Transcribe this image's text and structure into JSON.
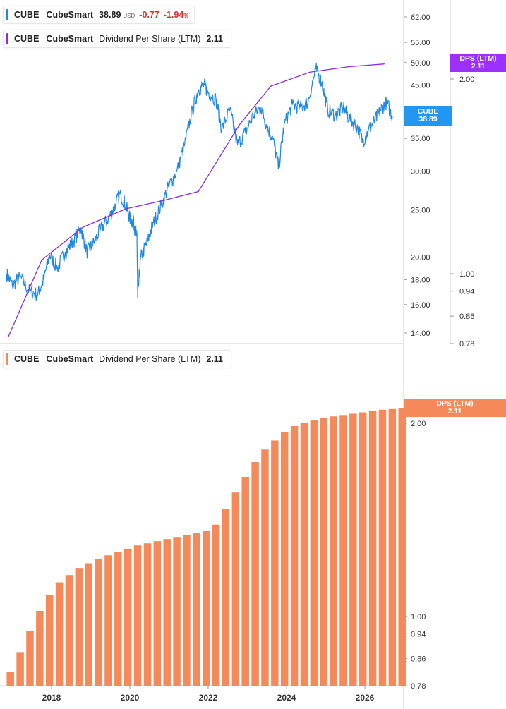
{
  "legends": {
    "price": {
      "symbol": "CUBE",
      "name": "CubeSmart",
      "value": "38.89",
      "currency": "USD",
      "change": "-0.77",
      "change_pct": "-1.94",
      "pct_sign": "%",
      "color": "#1e88e5"
    },
    "dps_top": {
      "symbol": "CUBE",
      "name": "CubeSmart",
      "label": "Dividend Per Share (LTM)",
      "value": "2.11",
      "color": "#8a2be2"
    },
    "dps_bottom": {
      "symbol": "CUBE",
      "name": "CubeSmart",
      "label": "Dividend Per Share (LTM)",
      "value": "2.11",
      "color": "#f5895a"
    }
  },
  "tags": {
    "price": {
      "line1": "CUBE",
      "line2": "38.89",
      "color": "#2196f3"
    },
    "dps_top": {
      "line1": "DPS (LTM)",
      "line2": "2.11",
      "color": "#9b30ff"
    },
    "dps_bottom": {
      "line1": "DPS (LTM)",
      "line2": "2.11",
      "color": "#f5895a"
    }
  },
  "chart_data": [
    {
      "type": "line",
      "scale": "log",
      "x_axis": {
        "ticks": [
          "2018",
          "2020",
          "2022",
          "2024",
          "2026"
        ]
      },
      "y_price_ticks": [
        14,
        16,
        18,
        20,
        25,
        30,
        35,
        40,
        45,
        50,
        55,
        62
      ],
      "y_price_labels": [
        "14.00",
        "16.00",
        "18.00",
        "20.00",
        "25.00",
        "30.00",
        "35.00",
        "45.00",
        "50.00",
        "55.00",
        "62.00"
      ],
      "y_dps_ticks": [
        0.78,
        0.86,
        0.94,
        1.0,
        2.0
      ],
      "y_dps_labels": [
        "0.78",
        "0.86",
        "0.94",
        "1.00",
        "2.00"
      ],
      "series": [
        {
          "name": "CUBE",
          "color": "#1e88e5",
          "points": [
            [
              2016.85,
              18.5
            ],
            [
              2017.0,
              17.5
            ],
            [
              2017.2,
              18.2
            ],
            [
              2017.45,
              17.0
            ],
            [
              2017.65,
              16.8
            ],
            [
              2017.8,
              18.0
            ],
            [
              2017.95,
              20.2
            ],
            [
              2018.15,
              19.0
            ],
            [
              2018.35,
              20.5
            ],
            [
              2018.55,
              21.5
            ],
            [
              2018.75,
              23.0
            ],
            [
              2018.9,
              20.5
            ],
            [
              2019.05,
              21.2
            ],
            [
              2019.25,
              22.8
            ],
            [
              2019.45,
              24.0
            ],
            [
              2019.6,
              25.2
            ],
            [
              2019.75,
              27.0
            ],
            [
              2019.9,
              25.5
            ],
            [
              2020.0,
              24.0
            ],
            [
              2020.1,
              23.5
            ],
            [
              2020.18,
              22.0
            ],
            [
              2020.2,
              16.5
            ],
            [
              2020.28,
              20.0
            ],
            [
              2020.45,
              21.5
            ],
            [
              2020.6,
              23.5
            ],
            [
              2020.8,
              25.5
            ],
            [
              2021.0,
              28.0
            ],
            [
              2021.2,
              30.0
            ],
            [
              2021.4,
              34.0
            ],
            [
              2021.6,
              40.0
            ],
            [
              2021.75,
              44.0
            ],
            [
              2021.9,
              45.0
            ],
            [
              2022.0,
              43.5
            ],
            [
              2022.2,
              42.0
            ],
            [
              2022.35,
              36.5
            ],
            [
              2022.55,
              40.0
            ],
            [
              2022.75,
              34.0
            ],
            [
              2022.95,
              36.0
            ],
            [
              2023.15,
              39.0
            ],
            [
              2023.35,
              40.5
            ],
            [
              2023.5,
              37.0
            ],
            [
              2023.65,
              35.0
            ],
            [
              2023.8,
              30.5
            ],
            [
              2023.95,
              37.5
            ],
            [
              2024.15,
              41.0
            ],
            [
              2024.35,
              40.5
            ],
            [
              2024.55,
              41.5
            ],
            [
              2024.75,
              48.5
            ],
            [
              2024.9,
              45.5
            ],
            [
              2025.05,
              40.0
            ],
            [
              2025.25,
              39.0
            ],
            [
              2025.45,
              40.5
            ],
            [
              2025.6,
              38.5
            ],
            [
              2025.8,
              37.0
            ],
            [
              2025.95,
              34.5
            ],
            [
              2026.1,
              36.5
            ],
            [
              2026.25,
              38.0
            ],
            [
              2026.4,
              40.0
            ],
            [
              2026.55,
              41.5
            ],
            [
              2026.7,
              38.89
            ]
          ]
        },
        {
          "name": "DPS (LTM)",
          "color": "#8a2be2",
          "scale": "dps",
          "points": [
            [
              2016.9,
              0.8
            ],
            [
              2017.75,
              1.05
            ],
            [
              2018.8,
              1.18
            ],
            [
              2019.9,
              1.26
            ],
            [
              2020.9,
              1.3
            ],
            [
              2021.75,
              1.34
            ],
            [
              2022.8,
              1.7
            ],
            [
              2023.6,
              1.95
            ],
            [
              2024.6,
              2.05
            ],
            [
              2025.6,
              2.09
            ],
            [
              2026.5,
              2.11
            ]
          ]
        }
      ]
    },
    {
      "type": "bar",
      "scale": "log",
      "series": [
        {
          "name": "DPS (LTM)",
          "color": "#f5895a",
          "values": [
            0.82,
            0.88,
            0.95,
            1.02,
            1.08,
            1.13,
            1.16,
            1.19,
            1.21,
            1.23,
            1.245,
            1.26,
            1.275,
            1.29,
            1.3,
            1.31,
            1.32,
            1.33,
            1.34,
            1.35,
            1.36,
            1.39,
            1.47,
            1.56,
            1.65,
            1.74,
            1.82,
            1.88,
            1.94,
            1.98,
            2.0,
            2.02,
            2.04,
            2.05,
            2.06,
            2.07,
            2.08,
            2.09,
            2.1,
            2.105,
            2.11
          ]
        }
      ],
      "x_start": 2016.95,
      "x_step": 0.25
    }
  ]
}
